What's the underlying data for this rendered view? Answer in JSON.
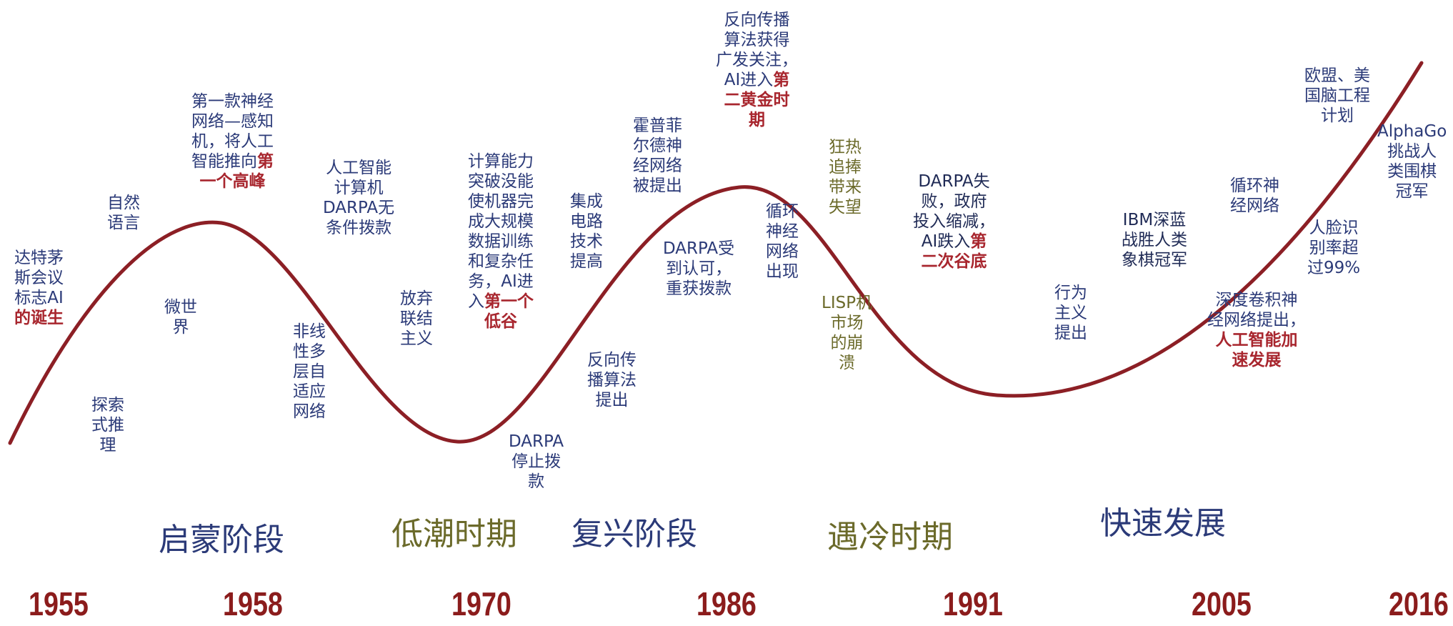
{
  "colors": {
    "curve": "#8c1f25",
    "annotation": "#2b3a78",
    "highlight": "#a8262e",
    "olive": "#6b6a2a",
    "year": "#8b1c1c"
  },
  "annotations": [
    {
      "id": "dartmouth",
      "parts": [
        {
          "t": "达特茅\n斯会议\n标志AI"
        },
        {
          "t": "\n的诞生",
          "hl": true
        }
      ]
    },
    {
      "id": "natural-language",
      "parts": [
        {
          "t": "自然\n语言"
        }
      ]
    },
    {
      "id": "perceptron",
      "parts": [
        {
          "t": "第一款神经\n网络—感知\n机，将人工\n智能推向"
        },
        {
          "t": "第",
          "hl": true
        },
        {
          "t": "\n一个高峰",
          "hl": true
        }
      ]
    },
    {
      "id": "micro-world",
      "parts": [
        {
          "t": "微世\n界"
        }
      ]
    },
    {
      "id": "exploratory-reasoning",
      "parts": [
        {
          "t": "探索\n式推\n理"
        }
      ]
    },
    {
      "id": "ai-computer",
      "parts": [
        {
          "t": "人工智能\n计算机\nDARPA无\n条件拨款"
        }
      ]
    },
    {
      "id": "nonlinear-network",
      "parts": [
        {
          "t": "非线\n性多\n层自\n适应\n网络"
        }
      ]
    },
    {
      "id": "abandon-connectionism",
      "parts": [
        {
          "t": "放弃\n联结\n主义"
        }
      ]
    },
    {
      "id": "computing-limits",
      "parts": [
        {
          "t": "计算能力\n突破没能\n使机器完\n成大规模\n数据训练\n和复杂任\n务，AI进\n入"
        },
        {
          "t": "第一个",
          "hl": true
        },
        {
          "t": "\n低谷",
          "hl": true
        }
      ]
    },
    {
      "id": "darpa-stop",
      "parts": [
        {
          "t": "DARPA\n停止拨\n款"
        }
      ]
    },
    {
      "id": "integrated-circuit",
      "parts": [
        {
          "t": "集成\n电路\n技术\n提高"
        }
      ]
    },
    {
      "id": "hopfield",
      "parts": [
        {
          "t": "霍普菲\n尔德神\n经网络\n被提出"
        }
      ]
    },
    {
      "id": "backprop-proposed",
      "parts": [
        {
          "t": "反向传\n播算法\n提出"
        }
      ]
    },
    {
      "id": "darpa-recognized",
      "parts": [
        {
          "t": "DARPA受\n到认可，\n重获拨款"
        }
      ]
    },
    {
      "id": "backprop-attention",
      "parts": [
        {
          "t": "反向传播\n算法获得\n广发关注，\nAI进入"
        },
        {
          "t": "第",
          "hl": true
        },
        {
          "t": "\n二黄金时\n期",
          "hl": true
        }
      ]
    },
    {
      "id": "recurrent-network-appears",
      "parts": [
        {
          "t": "循环\n神经\n网络\n出现"
        }
      ]
    },
    {
      "id": "fanatic-disappointment",
      "style": "olive",
      "parts": [
        {
          "t": "狂热\n追捧\n带来\n失望"
        }
      ]
    },
    {
      "id": "lisp-collapse",
      "style": "olive",
      "parts": [
        {
          "t": "LISP机\n市场\n的崩\n溃"
        }
      ]
    },
    {
      "id": "darpa-failure",
      "parts": [
        {
          "t": "DARPA失\n败，政府\n投入缩减，\nAI跌入"
        },
        {
          "t": "第",
          "hl": true
        },
        {
          "t": "\n二次谷底",
          "hl": true
        }
      ]
    },
    {
      "id": "behaviorism",
      "parts": [
        {
          "t": "行为\n主义\n提出"
        }
      ]
    },
    {
      "id": "ibm-deep-blue",
      "parts": [
        {
          "t": "IBM深蓝\n战胜人类\n象棋冠军"
        }
      ]
    },
    {
      "id": "recurrent-network",
      "parts": [
        {
          "t": "循环神\n经网络"
        }
      ]
    },
    {
      "id": "deep-cnn",
      "parts": [
        {
          "t": "深度卷积神\n经网络提出，\n"
        },
        {
          "t": "人工智能加\n速发展",
          "hl": true
        }
      ]
    },
    {
      "id": "face-recognition",
      "parts": [
        {
          "t": "人脸识\n别率超\n过99%"
        }
      ]
    },
    {
      "id": "brain-project",
      "parts": [
        {
          "t": "欧盟、美\n国脑工程\n计划"
        }
      ]
    },
    {
      "id": "alphago",
      "parts": [
        {
          "t": "AlphaGo\n挑战人\n类围棋\n冠军"
        }
      ]
    }
  ],
  "phases": [
    {
      "id": "enlightenment",
      "label": "启蒙阶段",
      "color": "#2b3a78"
    },
    {
      "id": "low-tide",
      "label": "低潮时期",
      "color": "#6b6a2a"
    },
    {
      "id": "revival",
      "label": "复兴阶段",
      "color": "#2b3a78"
    },
    {
      "id": "cold-period",
      "label": "遇冷时期",
      "color": "#6b6a2a"
    },
    {
      "id": "rapid-development",
      "label": "快速发展",
      "color": "#2b3a78"
    }
  ],
  "years": [
    "1955",
    "1958",
    "1970",
    "1986",
    "1991",
    "2005",
    "2016"
  ]
}
